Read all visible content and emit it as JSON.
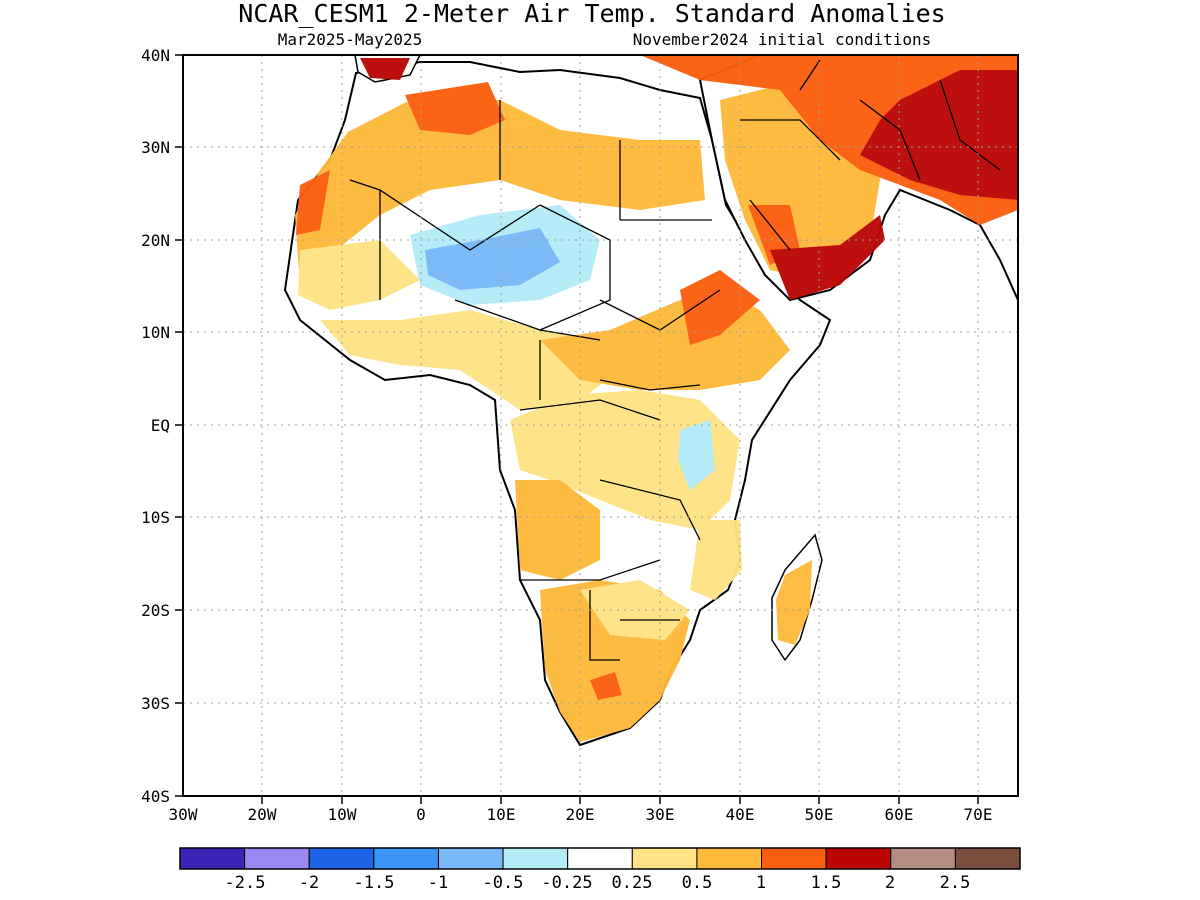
{
  "header": {
    "title": "NCAR_CESM1 2-Meter Air Temp. Standard Anomalies",
    "period": "Mar2025-May2025",
    "initial_conditions": "November2024 initial conditions"
  },
  "map": {
    "region": "Africa",
    "lon_range": [
      -30,
      75
    ],
    "lat_range": [
      -40,
      40
    ],
    "lat_ticks": [
      "40N",
      "30N",
      "20N",
      "10N",
      "EQ",
      "10S",
      "20S",
      "30S",
      "40S"
    ],
    "lon_ticks": [
      "30W",
      "20W",
      "10W",
      "0",
      "10E",
      "20E",
      "30E",
      "40E",
      "50E",
      "60E",
      "70E"
    ],
    "grid": true
  },
  "legend": {
    "bins": [
      {
        "color": "#3a25b8"
      },
      {
        "color": "#9a88f2"
      },
      {
        "color": "#1e62e6"
      },
      {
        "color": "#3c95f5"
      },
      {
        "color": "#78b8f8"
      },
      {
        "color": "#b3ecf7"
      },
      {
        "color": "#ffffff"
      },
      {
        "color": "#ffe285"
      },
      {
        "color": "#feb93b"
      },
      {
        "color": "#fb5e0e"
      },
      {
        "color": "#bc0606"
      },
      {
        "color": "#b38e80"
      },
      {
        "color": "#7a4d3f"
      }
    ],
    "labels": [
      "-2.5",
      "-2",
      "-1.5",
      "-1",
      "-0.5",
      "-0.25",
      "0.25",
      "0.5",
      "1",
      "1.5",
      "2",
      "2.5"
    ]
  }
}
